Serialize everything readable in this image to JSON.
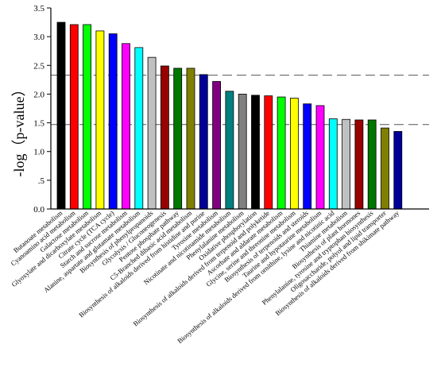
{
  "chart_data": {
    "type": "bar",
    "title": "",
    "xlabel": "",
    "ylabel": "-log（p-value）",
    "ylim": [
      0,
      3.5
    ],
    "yticks": [
      "0.0",
      ".5",
      "1.0",
      "1.5",
      "2.0",
      "2.5",
      "3.0",
      "3.5"
    ],
    "grid": false,
    "reference_lines": [
      2.33,
      1.47
    ],
    "categories": [
      "Butanoate metabolism",
      "Cyanoamino acid metabolism",
      "Galactose metabolism",
      "Glyoxylate and dicarboxylate metabolism",
      "Citrate cycle (TCA cycle)",
      "Starch and sucrose metabolism",
      "Alanine, aspartate and glutamate metabolism",
      "Biosynthesis of phenylpropanoids",
      "Glycolysis / Gluconeogenesis",
      "Pentose phosphate pathway",
      "C5-Branched dibasic acid metabolism",
      "Biosynthesis of alkaloids derived from histidine and purine",
      "Tyrosine metabolism",
      "Nicotinate and nicotinamide metabolism",
      "Phenylalanine metabolism",
      "Oxidative phosphorylation",
      "Biosynthesis of alkaloids derived from terpenoid and polyketide",
      "Ascorbate and aldarate metabolism",
      "Glycine, serine and threonine metabolism",
      "Biosynthesis of terpenoids and steroids",
      "Taurine and hypotaurine metabolism",
      "Biosynthesis of alkaloids derived from ornithine, lysine and nicotinic acid",
      "Thiamine metabolism",
      "Biosynthesis of plant hormones",
      "Phenylalanine, tyrosine and tryptophan biosynthesis",
      "Oligosaccharide, polyol and lipid transporter",
      "Biosynthesis of alkaloids derived from shikimate pathway"
    ],
    "values": [
      3.25,
      3.21,
      3.21,
      3.1,
      3.05,
      2.88,
      2.81,
      2.64,
      2.49,
      2.45,
      2.45,
      2.34,
      2.22,
      2.05,
      2.0,
      1.98,
      1.97,
      1.95,
      1.93,
      1.83,
      1.8,
      1.57,
      1.56,
      1.55,
      1.55,
      1.41,
      1.35
    ],
    "colors": [
      "#000000",
      "#ff0000",
      "#00ff00",
      "#ffff00",
      "#0000ff",
      "#ff00ff",
      "#00ffff",
      "#c0c0c0",
      "#990000",
      "#007700",
      "#808000",
      "#000099",
      "#800080",
      "#008080",
      "#808080",
      "#000000",
      "#ff0000",
      "#00ff00",
      "#ffff00",
      "#0000ff",
      "#ff00ff",
      "#00ffff",
      "#c0c0c0",
      "#990000",
      "#007700",
      "#808000",
      "#000099"
    ]
  }
}
